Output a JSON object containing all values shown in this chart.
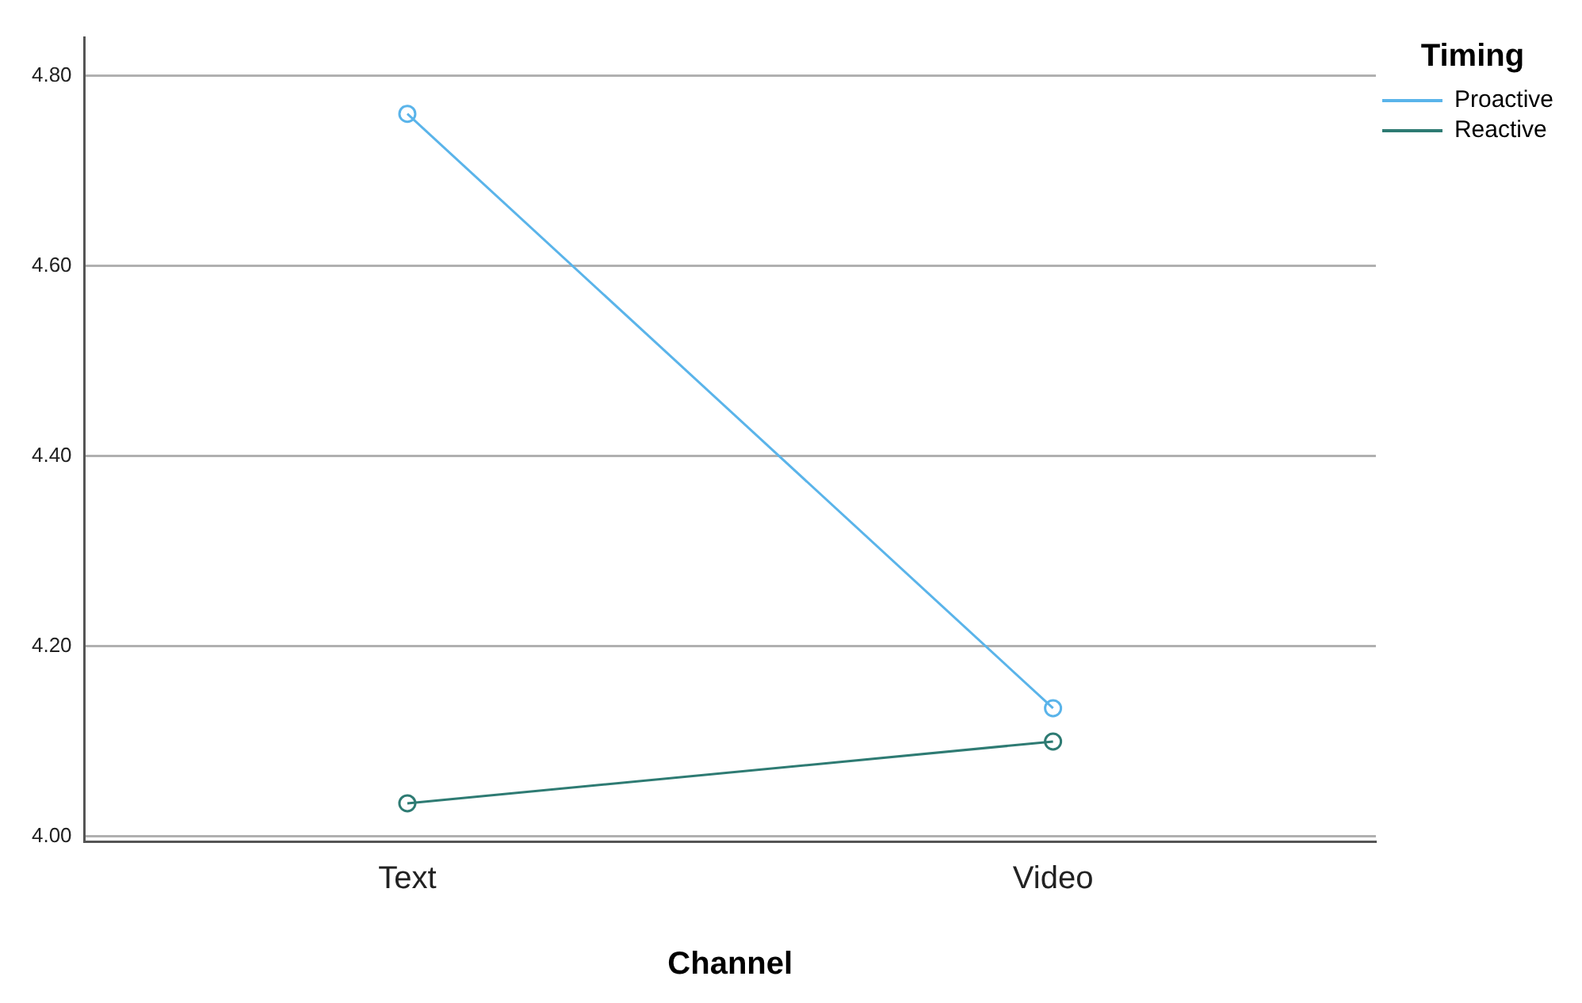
{
  "chart_data": {
    "type": "line",
    "xlabel": "Channel",
    "legend_title": "Timing",
    "categories": [
      "Text",
      "Video"
    ],
    "series": [
      {
        "name": "Proactive",
        "color": "#5ab4ea",
        "values": [
          4.76,
          4.135
        ]
      },
      {
        "name": "Reactive",
        "color": "#2e7b73",
        "values": [
          4.035,
          4.1
        ]
      }
    ],
    "ylim": [
      3.995,
      4.84
    ],
    "yticks": [
      {
        "value": 4.0,
        "label": "4.00"
      },
      {
        "value": 4.2,
        "label": "4.20"
      },
      {
        "value": 4.4,
        "label": "4.40"
      },
      {
        "value": 4.6,
        "label": "4.60"
      },
      {
        "value": 4.8,
        "label": "4.80"
      }
    ],
    "grid": "y",
    "legend": "top right",
    "marker": "circle",
    "line_style": "solid"
  }
}
